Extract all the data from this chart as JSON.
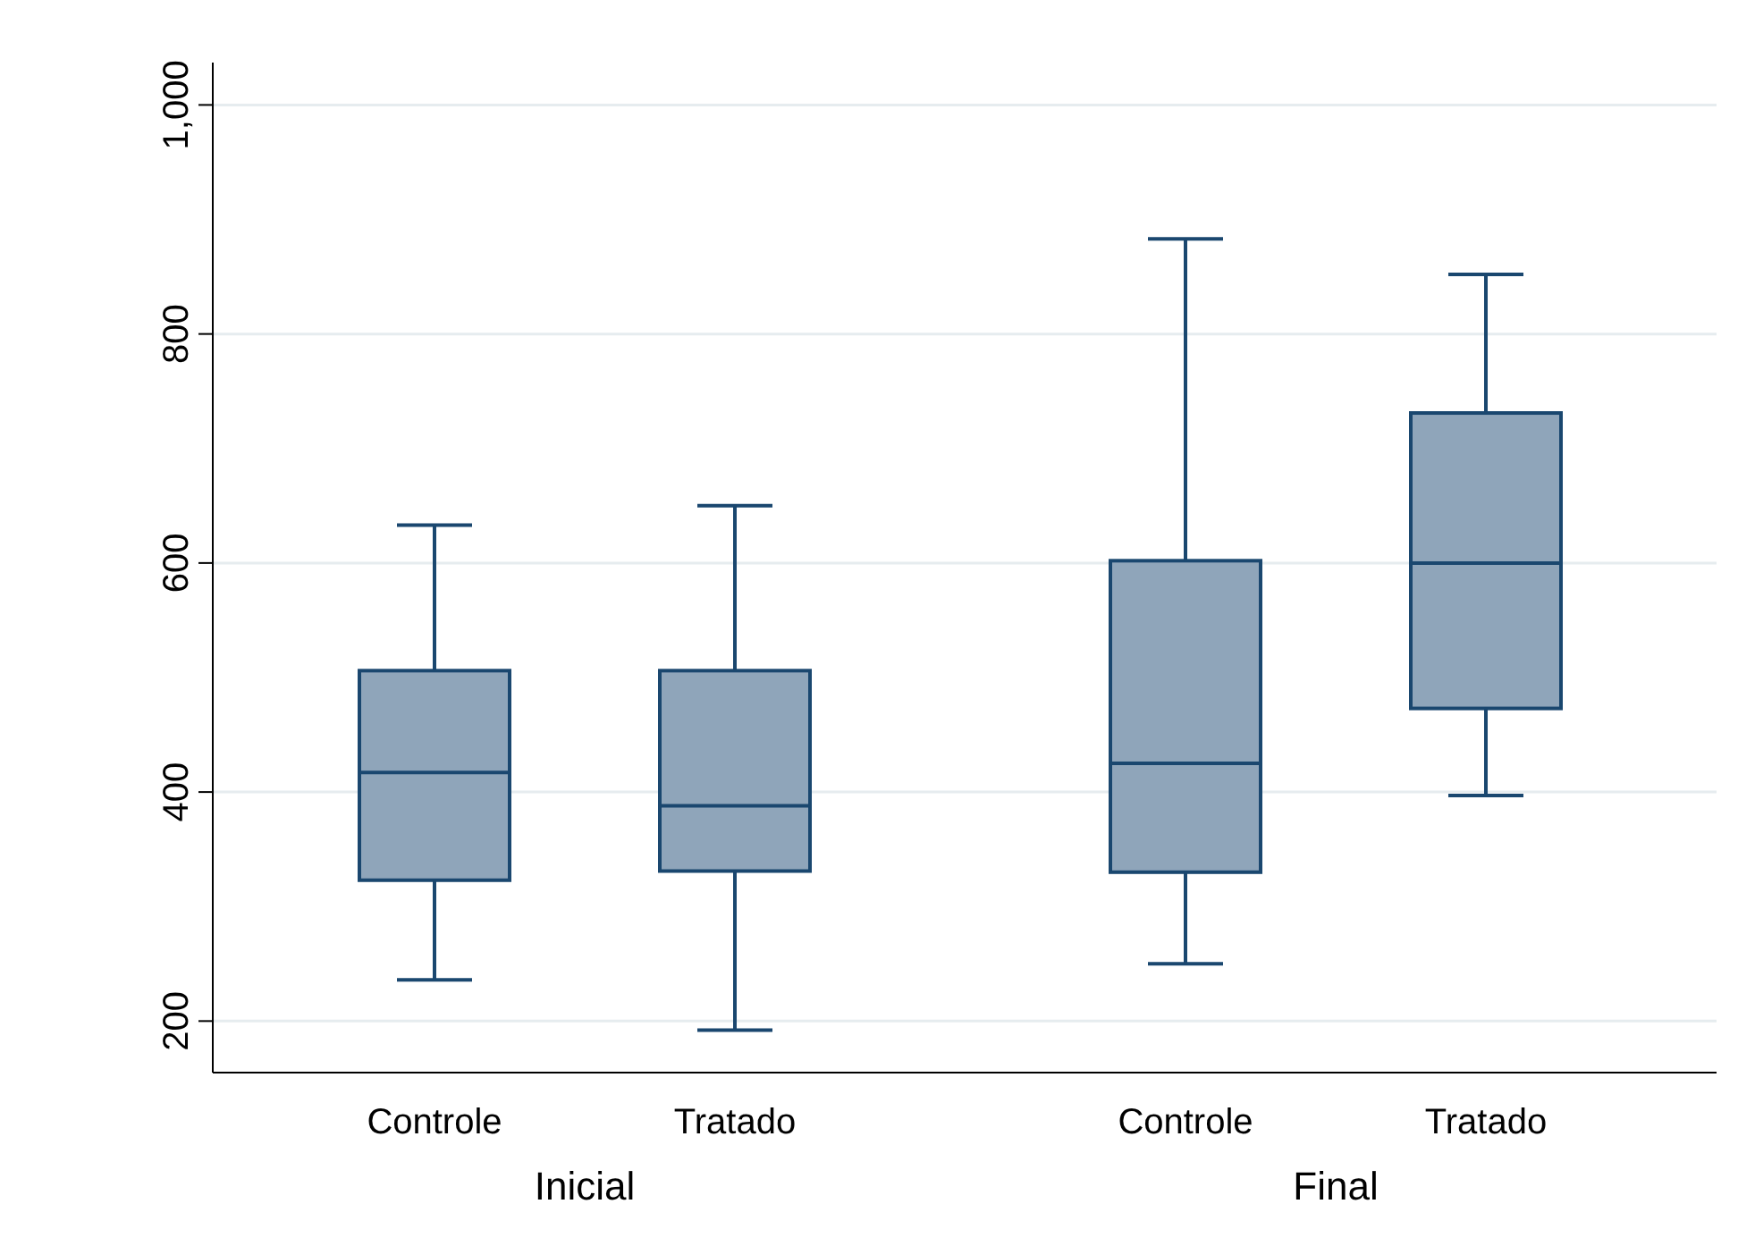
{
  "chart_data": {
    "type": "box",
    "categories": [
      "Controle",
      "Tratado",
      "Controle",
      "Tratado"
    ],
    "annotations": [
      "Inicial",
      "Final"
    ],
    "boxes": [
      {
        "low": 236,
        "q1": 323,
        "median": 417,
        "q3": 506,
        "high": 633
      },
      {
        "low": 192,
        "q1": 331,
        "median": 388,
        "q3": 506,
        "high": 650
      },
      {
        "low": 250,
        "q1": 330,
        "median": 425,
        "q3": 602,
        "high": 883
      },
      {
        "low": 397,
        "q1": 473,
        "median": 600,
        "q3": 731,
        "high": 852
      }
    ],
    "color": "#8fa5ba",
    "ylim": [
      155,
      1037
    ],
    "yticks": [
      200,
      400,
      600,
      800,
      {
        "value": 1000,
        "label": "1,000"
      }
    ],
    "grid": "y"
  }
}
